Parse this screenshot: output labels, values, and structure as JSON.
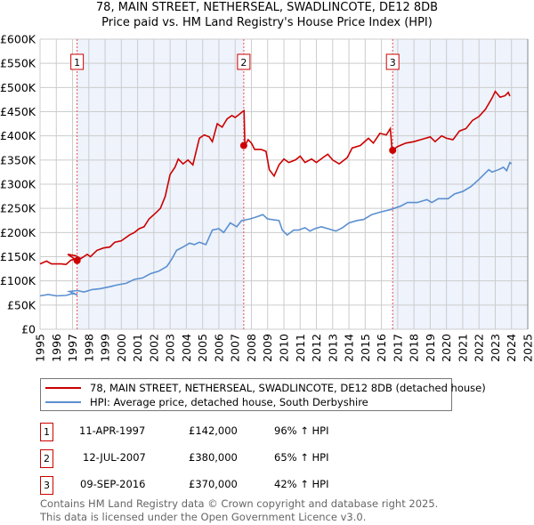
{
  "header": {
    "title": "78, MAIN STREET, NETHERSEAL, SWADLINCOTE, DE12 8DB",
    "subtitle": "Price paid vs. HM Land Registry's House Price Index (HPI)"
  },
  "colors": {
    "property": "#cc0000",
    "hpi": "#5b8fd0",
    "shade": "#eef3fc",
    "grid": "#cccccc"
  },
  "chart_data": {
    "type": "line",
    "title": "78, MAIN STREET, NETHERSEAL, SWADLINCOTE, DE12 8DB",
    "subtitle": "Price paid vs. HM Land Registry's House Price Index (HPI)",
    "xlim": [
      1995,
      2025
    ],
    "ylim": [
      0,
      600000
    ],
    "grid": true,
    "legend_placement": "below",
    "y_ticks": [
      {
        "value": 0,
        "label": "£0"
      },
      {
        "value": 50000,
        "label": "£50K"
      },
      {
        "value": 100000,
        "label": "£100K"
      },
      {
        "value": 150000,
        "label": "£150K"
      },
      {
        "value": 200000,
        "label": "£200K"
      },
      {
        "value": 250000,
        "label": "£250K"
      },
      {
        "value": 300000,
        "label": "£300K"
      },
      {
        "value": 350000,
        "label": "£350K"
      },
      {
        "value": 400000,
        "label": "£400K"
      },
      {
        "value": 450000,
        "label": "£450K"
      },
      {
        "value": 500000,
        "label": "£500K"
      },
      {
        "value": 550000,
        "label": "£550K"
      },
      {
        "value": 600000,
        "label": "£600K"
      }
    ],
    "x_ticks": [
      "1995",
      "1996",
      "1997",
      "1998",
      "1999",
      "2000",
      "2001",
      "2002",
      "2003",
      "2004",
      "2005",
      "2006",
      "2007",
      "2008",
      "2009",
      "2010",
      "2011",
      "2012",
      "2013",
      "2014",
      "2015",
      "2016",
      "2017",
      "2018",
      "2019",
      "2020",
      "2021",
      "2022",
      "2023",
      "2024",
      "2025"
    ],
    "series": [
      {
        "name": "78, MAIN STREET, NETHERSEAL, SWADLINCOTE, DE12 8DB (detached house)",
        "color": "#cc0000",
        "points": [
          [
            1995,
            135
          ],
          [
            1995.4,
            141
          ],
          [
            1995.7,
            135
          ],
          [
            1996.3,
            135
          ],
          [
            1996.6,
            134
          ],
          [
            1996.9,
            143
          ],
          [
            1997.15,
            145
          ],
          [
            1997.28,
            142
          ],
          [
            1997.7,
            155
          ],
          [
            1998.2,
            152
          ],
          [
            1998.5,
            146
          ],
          [
            1998.9,
            155
          ],
          [
            1999.1,
            150
          ],
          [
            1999.5,
            163
          ],
          [
            1999.9,
            168
          ],
          [
            2000.3,
            170
          ],
          [
            2000.6,
            180
          ],
          [
            2001,
            183
          ],
          [
            2001.5,
            195
          ],
          [
            2001.8,
            200
          ],
          [
            2002.1,
            208
          ],
          [
            2002.4,
            212
          ],
          [
            2002.7,
            228
          ],
          [
            2003.1,
            240
          ],
          [
            2003.4,
            250
          ],
          [
            2003.7,
            275
          ],
          [
            2004,
            320
          ],
          [
            2004.3,
            335
          ],
          [
            2004.5,
            352
          ],
          [
            2004.8,
            342
          ],
          [
            2005.1,
            350
          ],
          [
            2005.4,
            340
          ],
          [
            2005.8,
            395
          ],
          [
            2006.1,
            402
          ],
          [
            2006.4,
            398
          ],
          [
            2006.6,
            388
          ],
          [
            2006.9,
            425
          ],
          [
            2007.2,
            418
          ],
          [
            2007.5,
            435
          ],
          [
            2007.8,
            442
          ],
          [
            2008.0,
            438
          ],
          [
            2008.2,
            443
          ],
          [
            2008.45,
            450
          ],
          [
            2008.55,
            452
          ],
          [
            2008.6,
            380
          ],
          [
            2008.8,
            392
          ],
          [
            2009.0,
            385
          ],
          [
            2009.2,
            372
          ],
          [
            2009.6,
            372
          ],
          [
            2009.9,
            368
          ],
          [
            2010.1,
            330
          ]
        ],
        "points2": [
          [
            2010.1,
            330
          ],
          [
            2010.4,
            317
          ],
          [
            2010.7,
            340
          ],
          [
            2011,
            352
          ],
          [
            2011.3,
            345
          ],
          [
            2011.7,
            350
          ],
          [
            2012,
            358
          ],
          [
            2012.3,
            345
          ],
          [
            2012.7,
            352
          ],
          [
            2013,
            345
          ],
          [
            2013.4,
            355
          ],
          [
            2013.7,
            362
          ],
          [
            2014,
            350
          ],
          [
            2014.4,
            342
          ],
          [
            2014.9,
            355
          ],
          [
            2015.2,
            375
          ],
          [
            2015.7,
            380
          ],
          [
            2016.2,
            395
          ],
          [
            2016.5,
            385
          ],
          [
            2016.9,
            405
          ],
          [
            2017.3,
            402
          ],
          [
            2017.55,
            415
          ],
          [
            2017.65,
            370
          ]
        ],
        "points3": [
          [
            2017.65,
            370
          ],
          [
            2018,
            378
          ],
          [
            2018.5,
            385
          ],
          [
            2019,
            388
          ],
          [
            2019.5,
            393
          ],
          [
            2020,
            398
          ],
          [
            2020.3,
            388
          ],
          [
            2020.7,
            400
          ],
          [
            2021,
            395
          ],
          [
            2021.4,
            392
          ],
          [
            2021.8,
            410
          ],
          [
            2022.2,
            415
          ],
          [
            2022.6,
            432
          ],
          [
            2023,
            440
          ],
          [
            2023.4,
            455
          ],
          [
            2023.8,
            478
          ],
          [
            2024,
            492
          ],
          [
            2024.3,
            480
          ],
          [
            2024.6,
            483
          ],
          [
            2024.8,
            490
          ],
          [
            2024.9,
            482
          ]
        ],
        "note": "values in £K"
      },
      {
        "name": "HPI: Average price, detached house, South Derbyshire",
        "color": "#5b8fd0",
        "points": [
          [
            1995,
            69
          ],
          [
            1995.5,
            72
          ],
          [
            1996,
            69
          ],
          [
            1996.6,
            70
          ],
          [
            1997,
            74
          ],
          [
            1997.3,
            71
          ],
          [
            1997.8,
            78
          ],
          [
            1998.3,
            80
          ],
          [
            1998.7,
            77
          ],
          [
            1999.2,
            82
          ],
          [
            1999.7,
            84
          ],
          [
            2000.3,
            88
          ],
          [
            2000.8,
            92
          ],
          [
            2001.3,
            95
          ],
          [
            2001.8,
            103
          ],
          [
            2002.3,
            106
          ],
          [
            2002.8,
            115
          ],
          [
            2003.3,
            120
          ],
          [
            2003.8,
            130
          ],
          [
            2004.1,
            145
          ],
          [
            2004.4,
            163
          ],
          [
            2004.8,
            170
          ],
          [
            2005.2,
            178
          ],
          [
            2005.5,
            175
          ],
          [
            2005.8,
            180
          ],
          [
            2006.2,
            175
          ],
          [
            2006.6,
            205
          ],
          [
            2007,
            208
          ],
          [
            2007.3,
            200
          ],
          [
            2007.7,
            220
          ],
          [
            2008.1,
            212
          ],
          [
            2008.4,
            225
          ],
          [
            2008.9,
            228
          ],
          [
            2009.3,
            232
          ],
          [
            2009.7,
            237
          ],
          [
            2010,
            228
          ],
          [
            2010.7,
            225
          ],
          [
            2010.9,
            205
          ],
          [
            2011.2,
            195
          ],
          [
            2011.6,
            205
          ],
          [
            2011.9,
            205
          ],
          [
            2012.3,
            210
          ],
          [
            2012.6,
            203
          ],
          [
            2012.9,
            208
          ],
          [
            2013.3,
            212
          ],
          [
            2013.8,
            207
          ],
          [
            2014.2,
            203
          ],
          [
            2014.6,
            210
          ],
          [
            2015,
            220
          ],
          [
            2015.5,
            225
          ],
          [
            2015.9,
            227
          ],
          [
            2016.4,
            237
          ],
          [
            2016.9,
            242
          ],
          [
            2017.6,
            248
          ],
          [
            2018.2,
            255
          ],
          [
            2018.6,
            262
          ],
          [
            2019.2,
            262
          ],
          [
            2019.8,
            268
          ],
          [
            2020.1,
            262
          ],
          [
            2020.5,
            270
          ],
          [
            2021.1,
            270
          ],
          [
            2021.5,
            280
          ],
          [
            2022,
            285
          ],
          [
            2022.5,
            295
          ],
          [
            2023,
            310
          ],
          [
            2023.6,
            330
          ],
          [
            2023.8,
            325
          ],
          [
            2024.2,
            330
          ],
          [
            2024.5,
            335
          ],
          [
            2024.7,
            328
          ],
          [
            2024.9,
            345
          ],
          [
            2025,
            342
          ]
        ],
        "note": "values in £K"
      }
    ],
    "sales": [
      {
        "id": "1",
        "x": 1997.28,
        "value": 142000
      },
      {
        "id": "2",
        "x": 2007.53,
        "value": 380000
      },
      {
        "id": "3",
        "x": 2016.69,
        "value": 370000
      }
    ]
  },
  "legend": {
    "property": "78, MAIN STREET, NETHERSEAL, SWADLINCOTE, DE12 8DB (detached house)",
    "hpi": "HPI: Average price, detached house, South Derbyshire"
  },
  "transactions": [
    {
      "id": "1",
      "date": "11-APR-1997",
      "price": "£142,000",
      "hpi": "96% ↑ HPI"
    },
    {
      "id": "2",
      "date": "12-JUL-2007",
      "price": "£380,000",
      "hpi": "65% ↑ HPI"
    },
    {
      "id": "3",
      "date": "09-SEP-2016",
      "price": "£370,000",
      "hpi": "42% ↑ HPI"
    }
  ],
  "footer": {
    "line1": "Contains HM Land Registry data © Crown copyright and database right 2025.",
    "line2": "This data is licensed under the Open Government Licence v3.0."
  }
}
